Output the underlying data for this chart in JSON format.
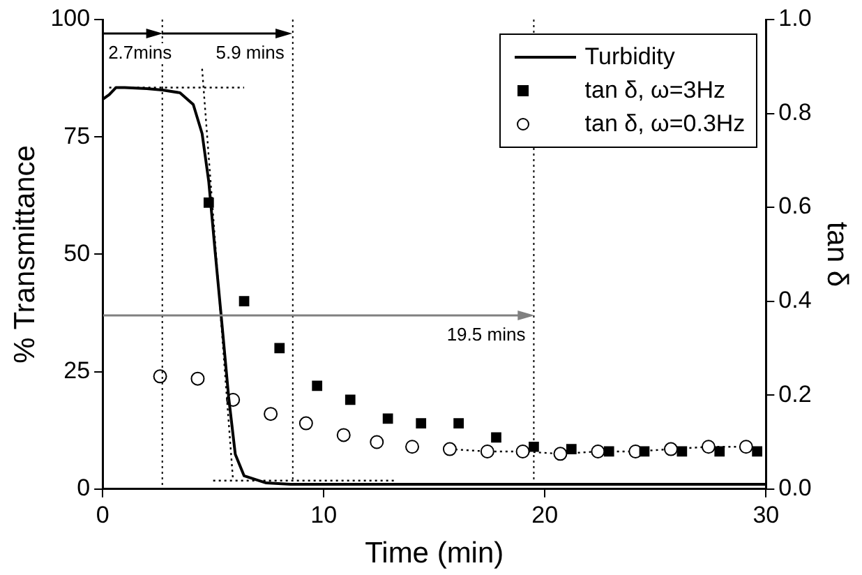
{
  "chart_data": {
    "type": "line",
    "xlabel": "Time (min)",
    "ylabel": "% Transmittance",
    "y2label": "tan δ",
    "xlim": [
      0,
      30
    ],
    "xticks": [
      0,
      10,
      20,
      30
    ],
    "ylim": [
      0,
      100
    ],
    "yticks": [
      0,
      25,
      50,
      75,
      100
    ],
    "y2lim": [
      0,
      1.0
    ],
    "y2ticks": [
      {
        "value": 0,
        "label": "0.0"
      },
      0.2,
      0.4,
      0.6,
      0.8,
      {
        "value": 1,
        "label": "1.0"
      }
    ],
    "grid": false,
    "legend": "top right",
    "series": [
      {
        "name": "Turbidity",
        "type": "line",
        "color": "#000000",
        "marker": "none",
        "line_style": "solid",
        "x": [
          0,
          0.3,
          0.6,
          1,
          2,
          2.7,
          3.5,
          4.1,
          4.5,
          4.8,
          5.1,
          5.4,
          5.7,
          6.0,
          6.4,
          7.4,
          8.5,
          10,
          15,
          20,
          25,
          30
        ],
        "values": [
          83,
          84,
          85.5,
          85.5,
          85.3,
          85,
          84.4,
          81.9,
          75.7,
          65.5,
          50,
          35,
          19.6,
          7.4,
          2.8,
          1.3,
          1,
          1,
          1,
          1,
          1,
          1
        ]
      },
      {
        "name": "tan δ, ω=3Hz",
        "type": "scatter",
        "axis": "y2",
        "color": "#000000",
        "marker": "square",
        "x": [
          4.8,
          6.4,
          8.0,
          9.7,
          11.2,
          12.9,
          14.4,
          16.1,
          17.8,
          19.5,
          21.2,
          22.9,
          24.5,
          26.2,
          27.9,
          29.6
        ],
        "values": [
          0.61,
          0.4,
          0.3,
          0.22,
          0.19,
          0.15,
          0.14,
          0.14,
          0.11,
          0.09,
          0.085,
          0.08,
          0.08,
          0.08,
          0.08,
          0.08
        ]
      },
      {
        "name": "tan δ, ω=0.3Hz",
        "type": "scatter",
        "axis": "y2",
        "color": "#000000",
        "marker": "circle",
        "x": [
          2.6,
          4.3,
          5.9,
          7.6,
          9.2,
          10.9,
          12.4,
          14.0,
          15.7,
          17.4,
          19.0,
          20.7,
          22.4,
          24.1,
          25.7,
          27.4,
          29.1
        ],
        "values": [
          0.24,
          0.235,
          0.19,
          0.16,
          0.14,
          0.115,
          0.1,
          0.09,
          0.085,
          0.08,
          0.08,
          0.075,
          0.08,
          0.08,
          0.085,
          0.09,
          0.09
        ]
      },
      {
        "type": "line",
        "axis": "y2",
        "color": "#000000",
        "marker": "none",
        "line_style": "dotted",
        "x": [
          15.7,
          17.4,
          19.0,
          20.7,
          22.4,
          24.1,
          25.7,
          27.4,
          29.1
        ],
        "values": [
          0.085,
          0.08,
          0.08,
          0.075,
          0.08,
          0.08,
          0.085,
          0.09,
          0.09
        ]
      },
      {
        "type": "line",
        "color": "#000000",
        "marker": "none",
        "line_style": "dotted",
        "x": [
          0.3,
          6.4
        ],
        "values": [
          85.5,
          85.5
        ]
      },
      {
        "type": "line",
        "color": "#000000",
        "marker": "none",
        "line_style": "dotted",
        "x": [
          4.5,
          5.9
        ],
        "values": [
          89.5,
          1.8
        ]
      },
      {
        "type": "line",
        "color": "#000000",
        "marker": "none",
        "line_style": "dotted",
        "x": [
          5.0,
          13.2
        ],
        "values": [
          1.8,
          1.8
        ]
      }
    ],
    "ref_lines": [
      {
        "axis": "x",
        "value": 2.7,
        "line_style": "dotted"
      },
      {
        "axis": "x",
        "value": 8.6,
        "line_style": "dotted"
      },
      {
        "axis": "x",
        "value": 19.5,
        "line_style": "dotted"
      }
    ],
    "annotations": [
      {
        "text": "2.7mins",
        "x": 2.7,
        "y": 97
      },
      {
        "text": "5.9 mins",
        "x": 8.6,
        "y": 97
      },
      {
        "text": "19.5 mins",
        "x": 19.5,
        "y": 37
      }
    ]
  }
}
